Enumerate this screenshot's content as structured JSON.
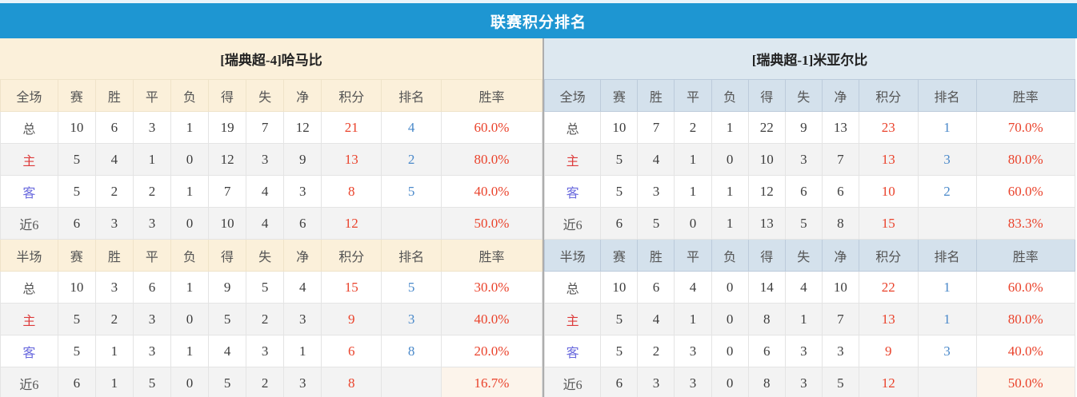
{
  "title": "联赛积分排名",
  "colors": {
    "title_bar": "#1e96d2",
    "left_header_bg": "#fbf0da",
    "right_header_bg": "#dde8f0",
    "points_red": "#ea432c",
    "rank_blue": "#4a89ca",
    "home_label_red": "#dd3b3b",
    "away_label_blue": "#6a6ade"
  },
  "columns": [
    "赛",
    "胜",
    "平",
    "负",
    "得",
    "失",
    "净",
    "积分",
    "排名",
    "胜率"
  ],
  "left": {
    "team": "[瑞典超-4]哈马比",
    "full": {
      "scope": "全场",
      "rows": [
        {
          "label": "总",
          "c": [
            "10",
            "6",
            "3",
            "1",
            "19",
            "7",
            "12"
          ],
          "points": "21",
          "rank": "4",
          "rate": "60.0%"
        },
        {
          "label": "主",
          "c": [
            "5",
            "4",
            "1",
            "0",
            "12",
            "3",
            "9"
          ],
          "points": "13",
          "rank": "2",
          "rate": "80.0%"
        },
        {
          "label": "客",
          "c": [
            "5",
            "2",
            "2",
            "1",
            "7",
            "4",
            "3"
          ],
          "points": "8",
          "rank": "5",
          "rate": "40.0%"
        },
        {
          "label": "近6",
          "c": [
            "6",
            "3",
            "3",
            "0",
            "10",
            "4",
            "6"
          ],
          "points": "12",
          "rank": "",
          "rate": "50.0%"
        }
      ]
    },
    "half": {
      "scope": "半场",
      "rows": [
        {
          "label": "总",
          "c": [
            "10",
            "3",
            "6",
            "1",
            "9",
            "5",
            "4"
          ],
          "points": "15",
          "rank": "5",
          "rate": "30.0%"
        },
        {
          "label": "主",
          "c": [
            "5",
            "2",
            "3",
            "0",
            "5",
            "2",
            "3"
          ],
          "points": "9",
          "rank": "3",
          "rate": "40.0%"
        },
        {
          "label": "客",
          "c": [
            "5",
            "1",
            "3",
            "1",
            "4",
            "3",
            "1"
          ],
          "points": "6",
          "rank": "8",
          "rate": "20.0%"
        },
        {
          "label": "近6",
          "c": [
            "6",
            "1",
            "5",
            "0",
            "5",
            "2",
            "3"
          ],
          "points": "8",
          "rank": "",
          "rate": "16.7%"
        }
      ]
    }
  },
  "right": {
    "team": "[瑞典超-1]米亚尔比",
    "full": {
      "scope": "全场",
      "rows": [
        {
          "label": "总",
          "c": [
            "10",
            "7",
            "2",
            "1",
            "22",
            "9",
            "13"
          ],
          "points": "23",
          "rank": "1",
          "rate": "70.0%"
        },
        {
          "label": "主",
          "c": [
            "5",
            "4",
            "1",
            "0",
            "10",
            "3",
            "7"
          ],
          "points": "13",
          "rank": "3",
          "rate": "80.0%"
        },
        {
          "label": "客",
          "c": [
            "5",
            "3",
            "1",
            "1",
            "12",
            "6",
            "6"
          ],
          "points": "10",
          "rank": "2",
          "rate": "60.0%"
        },
        {
          "label": "近6",
          "c": [
            "6",
            "5",
            "0",
            "1",
            "13",
            "5",
            "8"
          ],
          "points": "15",
          "rank": "",
          "rate": "83.3%"
        }
      ]
    },
    "half": {
      "scope": "半场",
      "rows": [
        {
          "label": "总",
          "c": [
            "10",
            "6",
            "4",
            "0",
            "14",
            "4",
            "10"
          ],
          "points": "22",
          "rank": "1",
          "rate": "60.0%"
        },
        {
          "label": "主",
          "c": [
            "5",
            "4",
            "1",
            "0",
            "8",
            "1",
            "7"
          ],
          "points": "13",
          "rank": "1",
          "rate": "80.0%"
        },
        {
          "label": "客",
          "c": [
            "5",
            "2",
            "3",
            "0",
            "6",
            "3",
            "3"
          ],
          "points": "9",
          "rank": "3",
          "rate": "40.0%"
        },
        {
          "label": "近6",
          "c": [
            "6",
            "3",
            "3",
            "0",
            "8",
            "3",
            "5"
          ],
          "points": "12",
          "rank": "",
          "rate": "50.0%"
        }
      ]
    }
  }
}
